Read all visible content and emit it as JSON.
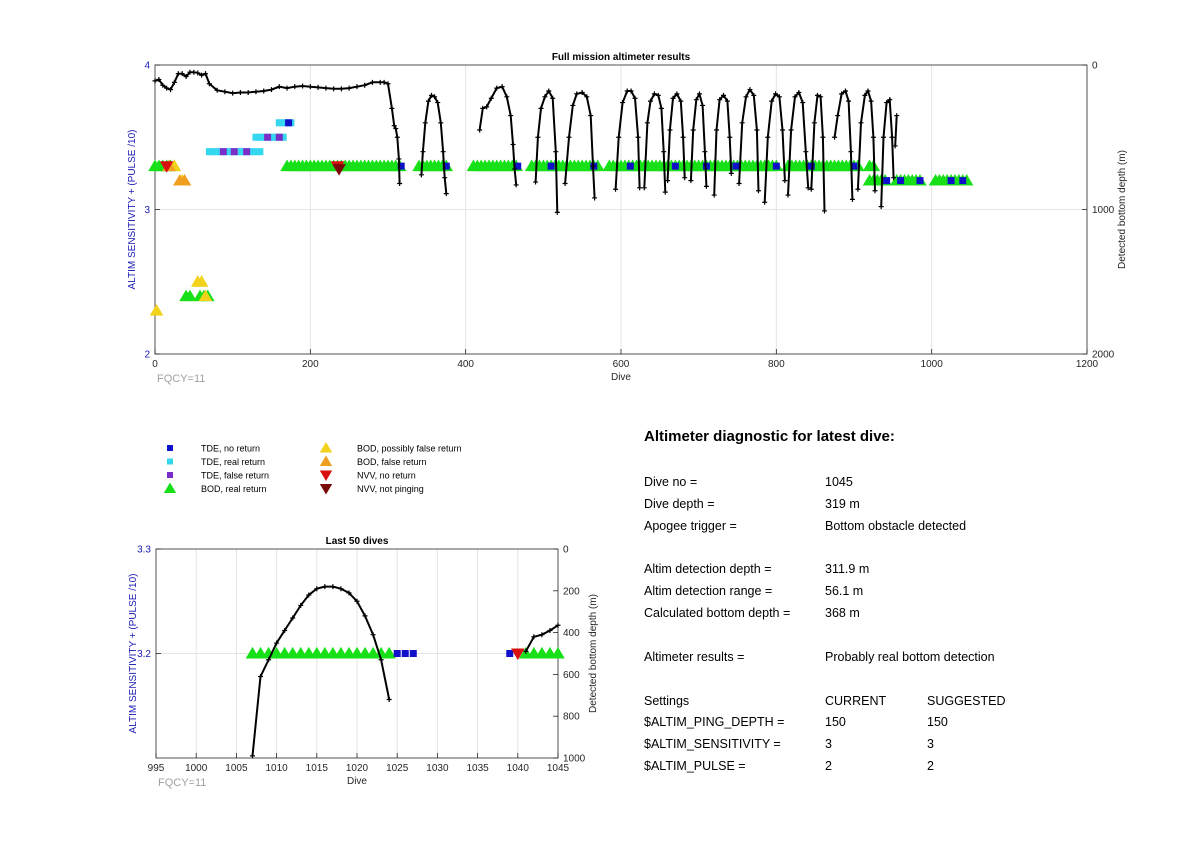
{
  "colors": {
    "tde_no_return": "#1010c8",
    "tde_real_return": "#35d6f0",
    "tde_false_return": "#7a2ec8",
    "bod_real_return": "#18e018",
    "bod_possibly_false": "#f2d21a",
    "bod_false": "#f0a020",
    "nvv_no_return": "#d81010",
    "nvv_not_pinging": "#7a0a0a",
    "depth_line": "#000000",
    "left_axis": "#1a1ab4",
    "fqcy": "#a0a0a0"
  },
  "chart_data": [
    {
      "type": "scatter",
      "title": "Full mission altimeter results",
      "xlabel": "Dive",
      "ylabel_left": "ALTIM SENSITIVITY + (PULSE /10)",
      "ylabel_right": "Detected bottom depth (m)",
      "xlim": [
        0,
        1200
      ],
      "ylim_left": [
        2,
        4
      ],
      "ylim_right": [
        0,
        2000
      ],
      "right_axis_reversed": true,
      "x_ticks": [
        "0",
        "200",
        "400",
        "600",
        "800",
        "1000",
        "1200"
      ],
      "y_left_ticks": [
        "2",
        "3",
        "4"
      ],
      "y_right_ticks": [
        "0",
        "1000",
        "2000"
      ],
      "grid": true,
      "note": "FQCY=11",
      "marker_series": {
        "bod_real_return": [
          {
            "x_range": [
              0,
              20
            ],
            "y": 3.3
          },
          {
            "x_range": [
              170,
              315
            ],
            "y": 3.3
          },
          {
            "x_range": [
              340,
              375
            ],
            "y": 3.3
          },
          {
            "x_range": [
              410,
              465
            ],
            "y": 3.3
          },
          {
            "x_range": [
              485,
              570
            ],
            "y": 3.3
          },
          {
            "x_range": [
              585,
              640
            ],
            "y": 3.3
          },
          {
            "x_range": [
              645,
              700
            ],
            "y": 3.3
          },
          {
            "x_range": [
              705,
              760
            ],
            "y": 3.3
          },
          {
            "x_range": [
              765,
              800
            ],
            "y": 3.3
          },
          {
            "x_range": [
              815,
              870
            ],
            "y": 3.3
          },
          {
            "x_range": [
              875,
              908
            ],
            "y": 3.3
          },
          {
            "x_range": [
              920,
              940
            ],
            "y": 3.2
          },
          {
            "x_range": [
              955,
              985
            ],
            "y": 3.2
          },
          {
            "x_range": [
              1005,
              1045
            ],
            "y": 3.2
          },
          {
            "x_range": [
              40,
              48
            ],
            "y": 2.4
          },
          {
            "x_range": [
              58,
              72
            ],
            "y": 2.4
          },
          {
            "x_range": [
              920,
              925
            ],
            "y": 3.3
          }
        ],
        "tde_no_return": [
          {
            "x": 317,
            "y": 3.3
          },
          {
            "x": 375,
            "y": 3.3
          },
          {
            "x": 467,
            "y": 3.3
          },
          {
            "x": 510,
            "y": 3.3
          },
          {
            "x": 565,
            "y": 3.3
          },
          {
            "x": 612,
            "y": 3.3
          },
          {
            "x": 670,
            "y": 3.3
          },
          {
            "x": 710,
            "y": 3.3
          },
          {
            "x": 748,
            "y": 3.3
          },
          {
            "x": 800,
            "y": 3.3
          },
          {
            "x": 845,
            "y": 3.3
          },
          {
            "x": 900,
            "y": 3.3
          },
          {
            "x": 942,
            "y": 3.2
          },
          {
            "x": 960,
            "y": 3.2
          },
          {
            "x": 985,
            "y": 3.2
          },
          {
            "x": 1025,
            "y": 3.2
          },
          {
            "x": 1040,
            "y": 3.2
          },
          {
            "x": 172,
            "y": 3.6
          }
        ],
        "tde_real_return": [
          {
            "x_range": [
              70,
              135
            ],
            "y": 3.4
          },
          {
            "x_range": [
              130,
              165
            ],
            "y": 3.5
          },
          {
            "x_range": [
              160,
              175
            ],
            "y": 3.6
          }
        ],
        "tde_false_return": [
          {
            "x": 88,
            "y": 3.4
          },
          {
            "x": 102,
            "y": 3.4
          },
          {
            "x": 118,
            "y": 3.4
          },
          {
            "x": 145,
            "y": 3.5
          },
          {
            "x": 160,
            "y": 3.5
          }
        ],
        "bod_possibly_false": [
          {
            "x": 2,
            "y": 2.3
          },
          {
            "x": 35,
            "y": 3.2
          },
          {
            "x": 55,
            "y": 2.5
          },
          {
            "x": 60,
            "y": 2.5
          },
          {
            "x": 65,
            "y": 2.4
          },
          {
            "x": 25,
            "y": 3.3
          }
        ],
        "bod_false": [
          {
            "x": 32,
            "y": 3.2
          },
          {
            "x": 38,
            "y": 3.2
          },
          {
            "x": 18,
            "y": 3.3
          }
        ],
        "nvv_no_return": [
          {
            "x": 15,
            "y": 3.3
          },
          {
            "x": 235,
            "y": 3.3
          }
        ],
        "nvv_not_pinging": [
          {
            "x": 237,
            "y": 3.28
          }
        ]
      },
      "depth_segments": [
        {
          "x": [
            0,
            5,
            10,
            15,
            20,
            25,
            30,
            35,
            40,
            45,
            50,
            55,
            60,
            65,
            70,
            80,
            90,
            100,
            110,
            120,
            130,
            140,
            150,
            160,
            170,
            180,
            190,
            200,
            210,
            220,
            230,
            240,
            250,
            260,
            270,
            280,
            290,
            295,
            300,
            305,
            308,
            310,
            312,
            314,
            315
          ],
          "depth": [
            110,
            100,
            140,
            160,
            170,
            120,
            60,
            60,
            80,
            50,
            50,
            55,
            70,
            60,
            130,
            175,
            185,
            195,
            190,
            190,
            185,
            180,
            170,
            150,
            160,
            150,
            145,
            150,
            155,
            160,
            165,
            165,
            160,
            150,
            140,
            120,
            120,
            120,
            130,
            300,
            420,
            440,
            500,
            650,
            820
          ]
        },
        {
          "x": [
            343,
            345,
            348,
            352,
            356,
            360,
            364,
            368,
            371,
            373,
            375
          ],
          "depth": [
            760,
            600,
            400,
            250,
            210,
            220,
            260,
            400,
            600,
            780,
            890
          ]
        },
        {
          "x": [
            418,
            422,
            427,
            433,
            440,
            447,
            453,
            458,
            461,
            463,
            465
          ],
          "depth": [
            450,
            300,
            290,
            230,
            160,
            150,
            220,
            350,
            550,
            720,
            830
          ]
        },
        {
          "x": [
            490,
            493,
            497,
            502,
            507,
            512,
            516,
            518
          ],
          "depth": [
            810,
            500,
            300,
            220,
            180,
            230,
            600,
            1020
          ]
        },
        {
          "x": [
            528,
            533,
            538,
            543,
            550,
            556,
            561,
            564,
            566
          ],
          "depth": [
            820,
            500,
            280,
            200,
            190,
            220,
            350,
            700,
            920
          ]
        },
        {
          "x": [
            593,
            597,
            602,
            608,
            613,
            618,
            622,
            624
          ],
          "depth": [
            860,
            500,
            260,
            180,
            180,
            230,
            500,
            850
          ]
        },
        {
          "x": [
            630,
            634,
            638,
            643,
            648,
            652,
            655,
            657
          ],
          "depth": [
            850,
            400,
            250,
            200,
            210,
            300,
            600,
            880
          ]
        },
        {
          "x": [
            660,
            663,
            667,
            672,
            677,
            680,
            682
          ],
          "depth": [
            800,
            450,
            230,
            200,
            250,
            500,
            780
          ]
        },
        {
          "x": [
            690,
            693,
            697,
            701,
            705,
            708,
            710
          ],
          "depth": [
            800,
            450,
            240,
            200,
            280,
            600,
            840
          ]
        },
        {
          "x": [
            720,
            723,
            727,
            732,
            737,
            740,
            742
          ],
          "depth": [
            900,
            450,
            240,
            210,
            250,
            500,
            750
          ]
        },
        {
          "x": [
            752,
            756,
            761,
            766,
            771,
            775,
            777
          ],
          "depth": [
            820,
            400,
            220,
            170,
            210,
            450,
            870
          ]
        },
        {
          "x": [
            785,
            789,
            794,
            799,
            804,
            808,
            811
          ],
          "depth": [
            950,
            500,
            250,
            200,
            220,
            450,
            800
          ]
        },
        {
          "x": [
            815,
            819,
            824,
            829,
            834,
            838,
            841
          ],
          "depth": [
            900,
            450,
            220,
            190,
            260,
            600,
            850
          ]
        },
        {
          "x": [
            845,
            849,
            853,
            857,
            860,
            862
          ],
          "depth": [
            860,
            400,
            210,
            220,
            500,
            1010
          ]
        },
        {
          "x": [
            875,
            879,
            884,
            889,
            893,
            896,
            898
          ],
          "depth": [
            500,
            350,
            200,
            180,
            250,
            600,
            930
          ]
        },
        {
          "x": [
            905,
            909,
            914,
            918,
            922,
            925,
            927
          ],
          "depth": [
            860,
            400,
            210,
            180,
            250,
            500,
            870
          ]
        },
        {
          "x": [
            935,
            938,
            942,
            946,
            949,
            951
          ],
          "depth": [
            980,
            500,
            260,
            240,
            500,
            780
          ]
        },
        {
          "x": [
            953,
            955
          ],
          "depth": [
            560,
            350
          ]
        }
      ]
    },
    {
      "type": "scatter",
      "title": "Last 50 dives",
      "xlabel": "Dive",
      "ylabel_left": "ALTIM SENSITIVITY + (PULSE /10)",
      "ylabel_right": "Detected bottom depth (m)",
      "xlim": [
        995,
        1045
      ],
      "ylim_left": [
        3.1,
        3.3
      ],
      "ylim_right": [
        0,
        1000
      ],
      "right_axis_reversed": true,
      "x_ticks": [
        "995",
        "1000",
        "1005",
        "1010",
        "1015",
        "1020",
        "1025",
        "1030",
        "1035",
        "1040",
        "1045"
      ],
      "y_left_ticks": [
        "3.2",
        "3.3"
      ],
      "y_right_ticks": [
        "0",
        "200",
        "400",
        "600",
        "800",
        "1000"
      ],
      "grid": true,
      "note": "FQCY=11",
      "bod_real_return": [
        1007,
        1008,
        1009,
        1010,
        1011,
        1012,
        1013,
        1014,
        1015,
        1016,
        1017,
        1018,
        1019,
        1020,
        1021,
        1022,
        1023,
        1024,
        1041,
        1042,
        1043,
        1044,
        1045
      ],
      "tde_no_return": [
        1025,
        1026,
        1027,
        1039
      ],
      "nvv_no_return": [
        1040
      ],
      "bod_value": 3.2,
      "depth_segments": [
        {
          "x": [
            1007,
            1008,
            1009,
            1010,
            1011,
            1012,
            1013,
            1014,
            1015,
            1016,
            1017,
            1018,
            1019,
            1020,
            1021,
            1022,
            1023,
            1024
          ],
          "depth": [
            990,
            610,
            530,
            450,
            390,
            330,
            270,
            220,
            190,
            180,
            180,
            190,
            210,
            250,
            320,
            410,
            530,
            720
          ]
        },
        {
          "x": [
            1041,
            1042,
            1043,
            1044,
            1045
          ],
          "depth": [
            490,
            420,
            410,
            390,
            365
          ]
        }
      ]
    }
  ],
  "legend": {
    "items": [
      {
        "key": "tde_no_return",
        "label": "TDE, no return",
        "marker": "square"
      },
      {
        "key": "tde_real_return",
        "label": "TDE, real return",
        "marker": "square"
      },
      {
        "key": "tde_false_return",
        "label": "TDE, false return",
        "marker": "square"
      },
      {
        "key": "bod_real_return",
        "label": "BOD, real return",
        "marker": "triangle-up"
      },
      {
        "key": "bod_possibly_false",
        "label": "BOD, possibly false return",
        "marker": "triangle-up"
      },
      {
        "key": "bod_false",
        "label": "BOD, false return",
        "marker": "triangle-up"
      },
      {
        "key": "nvv_no_return",
        "label": "NVV, no return",
        "marker": "triangle-down"
      },
      {
        "key": "nvv_not_pinging",
        "label": "NVV, not pinging",
        "marker": "triangle-down"
      }
    ]
  },
  "diagnostic": {
    "title": "Altimeter diagnostic for latest dive:",
    "dive_no_label": "Dive no =",
    "dive_no": "1045",
    "dive_depth_label": "Dive depth =",
    "dive_depth": "319 m",
    "apogee_label": "Apogee trigger =",
    "apogee": "Bottom obstacle detected",
    "det_depth_label": "Altim detection depth =",
    "det_depth": "311.9 m",
    "det_range_label": "Altim detection range =",
    "det_range": "56.1 m",
    "calc_bottom_label": "Calculated bottom depth =",
    "calc_bottom": "368 m",
    "results_label": "Altimeter results =",
    "results": "Probably real bottom detection",
    "settings_label": "Settings",
    "current_label": "CURRENT",
    "suggested_label": "SUGGESTED",
    "settings": [
      {
        "name": "$ALTIM_PING_DEPTH =",
        "current": "150",
        "suggested": "150"
      },
      {
        "name": "$ALTIM_SENSITIVITY =",
        "current": "3",
        "suggested": "3"
      },
      {
        "name": "$ALTIM_PULSE =",
        "current": "2",
        "suggested": "2"
      }
    ]
  }
}
